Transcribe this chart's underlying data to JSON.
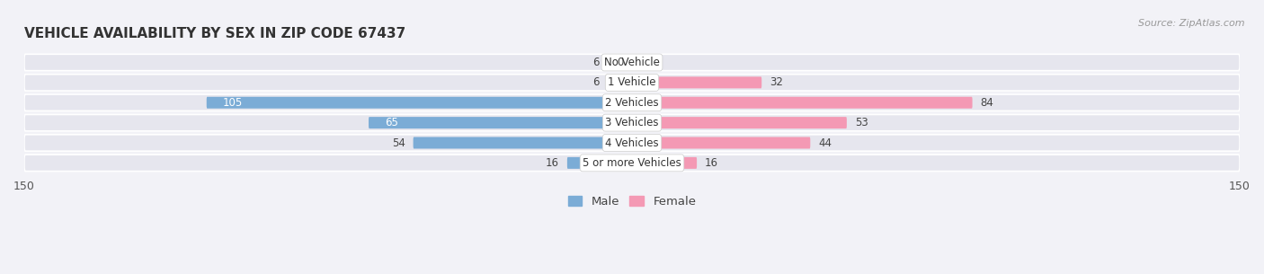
{
  "title": "VEHICLE AVAILABILITY BY SEX IN ZIP CODE 67437",
  "source": "Source: ZipAtlas.com",
  "categories": [
    "No Vehicle",
    "1 Vehicle",
    "2 Vehicles",
    "3 Vehicles",
    "4 Vehicles",
    "5 or more Vehicles"
  ],
  "male_values": [
    6,
    6,
    105,
    65,
    54,
    16
  ],
  "female_values": [
    0,
    32,
    84,
    53,
    44,
    16
  ],
  "male_color": "#7bacd6",
  "female_color": "#f499b4",
  "male_label": "Male",
  "female_label": "Female",
  "xlim": 150,
  "background_color": "#f2f2f7",
  "row_bg_color": "#e6e6ee",
  "title_fontsize": 11,
  "source_fontsize": 8,
  "label_fontsize": 9,
  "category_fontsize": 8.5,
  "value_fontsize": 8.5
}
